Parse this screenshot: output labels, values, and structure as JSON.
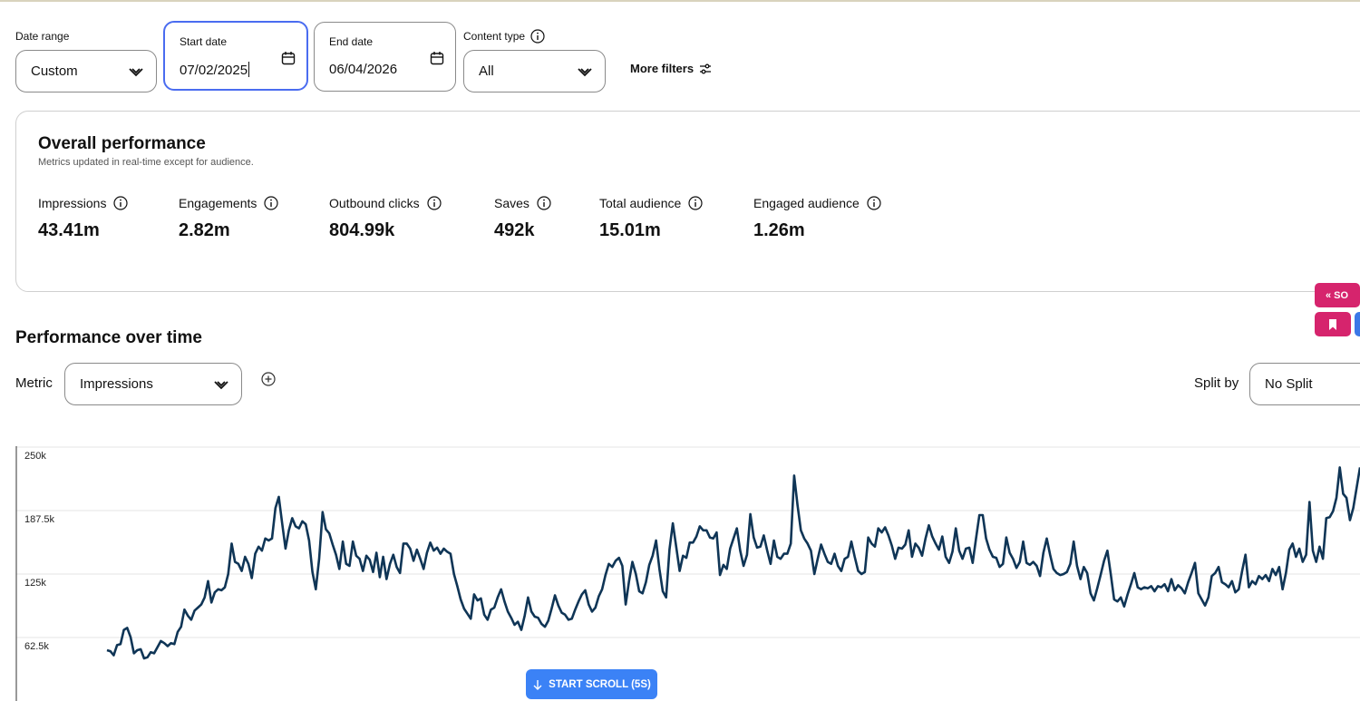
{
  "filters": {
    "date_range": {
      "label": "Date range",
      "value": "Custom"
    },
    "start_date": {
      "label": "Start date",
      "value": "07/02/2025"
    },
    "end_date": {
      "label": "End date",
      "value": "06/04/2026"
    },
    "content_type": {
      "label": "Content type",
      "value": "All"
    },
    "more_filters_label": "More filters"
  },
  "overall": {
    "title": "Overall performance",
    "subtitle": "Metrics updated in real-time except for audience.",
    "metrics": [
      {
        "label": "Impressions",
        "value": "43.41m"
      },
      {
        "label": "Engagements",
        "value": "2.82m"
      },
      {
        "label": "Outbound clicks",
        "value": "804.99k"
      },
      {
        "label": "Saves",
        "value": "492k"
      },
      {
        "label": "Total audience",
        "value": "15.01m"
      },
      {
        "label": "Engaged audience",
        "value": "1.26m"
      }
    ]
  },
  "side_buttons": {
    "collapse_label": "« SO",
    "bookmark_icon": "bookmark-icon"
  },
  "performance": {
    "title": "Performance over time",
    "metric_label": "Metric",
    "metric_value": "Impressions",
    "split_label": "Split by",
    "split_value": "No Split"
  },
  "scroll_button": {
    "label": "START SCROLL (5S)"
  },
  "colors": {
    "line": "#0f3556",
    "accent_blue": "#4a6cf0",
    "pink": "#d6246d",
    "scroll_blue": "#3b82f6"
  },
  "chart_data": {
    "type": "line",
    "y_ticks": [
      "250k",
      "187.5k",
      "125k",
      "62.5k"
    ],
    "y_tick_values": [
      250000,
      187500,
      125000,
      62500
    ],
    "ylim": [
      0,
      250000
    ],
    "grid": true,
    "series": [
      {
        "values": [
          50000,
          49000,
          45000,
          55000,
          56000,
          70000,
          72000,
          63000,
          47000,
          50000,
          51000,
          42000,
          43000,
          48000,
          47000,
          53000,
          59000,
          57000,
          54000,
          57000,
          56000,
          68000,
          73000,
          90000,
          84000,
          80000,
          89000,
          92000,
          95000,
          102000,
          118000,
          97000,
          107000,
          110000,
          109000,
          112000,
          125000,
          155000,
          137000,
          135000,
          128000,
          142000,
          135000,
          121000,
          145000,
          152000,
          148000,
          160000,
          158000,
          160000,
          190000,
          201000,
          175000,
          150000,
          168000,
          180000,
          172000,
          170000,
          177000,
          174000,
          158000,
          127000,
          110000,
          140000,
          186000,
          169000,
          165000,
          154000,
          144000,
          130000,
          157000,
          135000,
          133000,
          157000,
          143000,
          140000,
          128000,
          143000,
          139000,
          127000,
          146000,
          122000,
          142000,
          120000,
          135000,
          144000,
          132000,
          126000,
          155000,
          155000,
          150000,
          138000,
          149000,
          140000,
          130000,
          146000,
          156000,
          148000,
          151000,
          145000,
          150000,
          147000,
          145000,
          125000,
          113000,
          100000,
          91000,
          86000,
          81000,
          105000,
          99000,
          101000,
          85000,
          80000,
          90000,
          92000,
          102000,
          110000,
          98000,
          88000,
          82000,
          75000,
          78000,
          70000,
          84000,
          102000,
          88000,
          83000,
          82000,
          76000,
          73000,
          79000,
          91000,
          104000,
          94000,
          87000,
          85000,
          80000,
          81000,
          90000,
          98000,
          105000,
          109000,
          95000,
          88000,
          92000,
          103000,
          110000,
          124000,
          135000,
          132000,
          138000,
          141000,
          133000,
          95000,
          118000,
          137000,
          125000,
          108000,
          106000,
          117000,
          134000,
          143000,
          158000,
          130000,
          108000,
          102000,
          149000,
          175000,
          152000,
          128000,
          143000,
          141000,
          156000,
          156000,
          162000,
          172000,
          168000,
          168000,
          161000,
          160000,
          166000,
          124000,
          134000,
          130000,
          150000,
          160000,
          170000,
          148000,
          133000,
          144000,
          184000,
          161000,
          151000,
          152000,
          163000,
          148000,
          135000,
          158000,
          142000,
          140000,
          145000,
          145000,
          155000,
          222000,
          193000,
          168000,
          160000,
          155000,
          148000,
          125000,
          140000,
          154000,
          145000,
          137000,
          135000,
          145000,
          133000,
          128000,
          140000,
          142000,
          157000,
          142000,
          128000,
          125000,
          127000,
          161000,
          155000,
          152000,
          170000,
          166000,
          171000,
          163000,
          153000,
          140000,
          151000,
          150000,
          154000,
          168000,
          142000,
          155000,
          151000,
          143000,
          160000,
          173000,
          162000,
          155000,
          149000,
          162000,
          142000,
          136000,
          147000,
          170000,
          148000,
          140000,
          150000,
          151000,
          136000,
          160000,
          183000,
          183000,
          160000,
          149000,
          142000,
          141000,
          132000,
          135000,
          161000,
          146000,
          140000,
          131000,
          137000,
          157000,
          136000,
          134000,
          137000,
          133000,
          123000,
          146000,
          160000,
          144000,
          130000,
          126000,
          124000,
          125000,
          127000,
          135000,
          157000,
          133000,
          120000,
          132000,
          126000,
          106000,
          99000,
          111000,
          124000,
          138000,
          148000,
          125000,
          100000,
          98000,
          102000,
          93000,
          105000,
          115000,
          126000,
          112000,
          110000,
          112000,
          111000,
          113000,
          108000,
          113000,
          112000,
          115000,
          108000,
          120000,
          109000,
          114000,
          111000,
          106000,
          117000,
          126000,
          136000,
          106000,
          100000,
          94000,
          102000,
          123000,
          126000,
          132000,
          117000,
          115000,
          112000,
          118000,
          107000,
          110000,
          128000,
          144000,
          112000,
          118000,
          115000,
          123000,
          120000,
          124000,
          118000,
          130000,
          124000,
          132000,
          110000,
          126000,
          149000,
          155000,
          142000,
          150000,
          137000,
          144000,
          196000,
          148000,
          137000,
          152000,
          140000,
          180000,
          181000,
          187000,
          200000,
          230000,
          204000,
          200000,
          178000,
          190000,
          210000,
          230000
        ]
      }
    ]
  }
}
